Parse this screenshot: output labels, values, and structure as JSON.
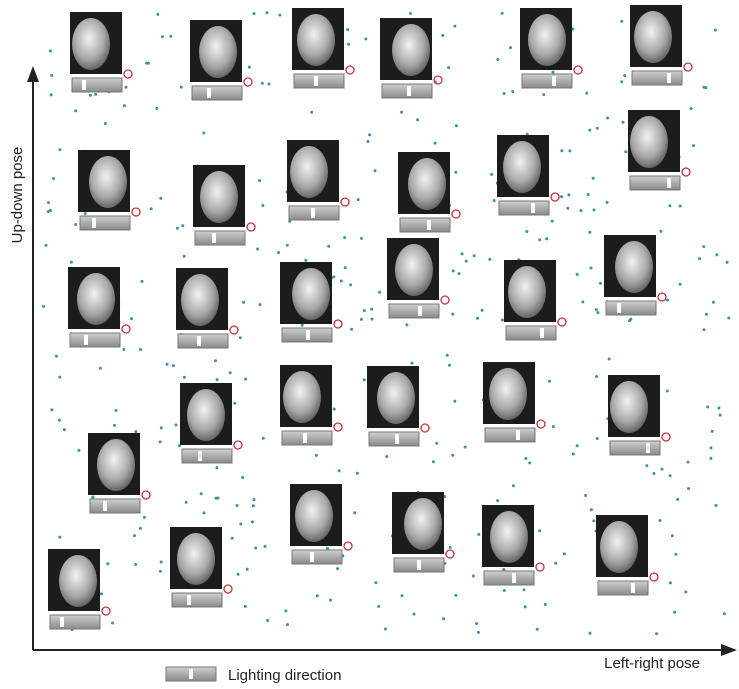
{
  "axes": {
    "y_label": "Up-down pose",
    "x_label": "Left-right pose"
  },
  "legend": {
    "label": "Lighting direction"
  }
}
